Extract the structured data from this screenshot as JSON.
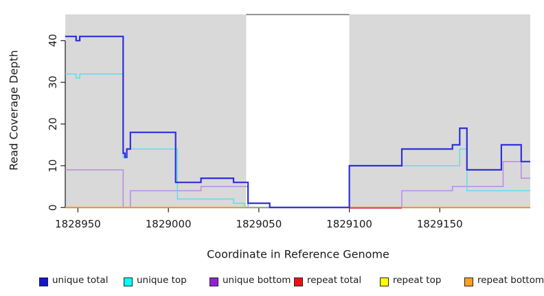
{
  "figure": {
    "xlabel": "Coordinate in Reference Genome",
    "ylabel": "Read Coverage Depth",
    "background_color": "#FFFFFF",
    "shaded_band_color": "#D9D9D9"
  },
  "chart_data": {
    "type": "line",
    "step": "post",
    "title": "",
    "xlabel": "Coordinate in Reference Genome",
    "ylabel": "Read Coverage Depth",
    "x_domain": [
      1828943,
      1829200
    ],
    "y_domain": [
      0,
      46.3
    ],
    "x_ticks": [
      1828950,
      1829000,
      1829050,
      1829100,
      1829150
    ],
    "y_ticks": [
      0,
      10,
      20,
      30,
      40
    ],
    "grid": false,
    "legend_position": "bottom",
    "shaded_regions": {
      "color": "#D9D9D9",
      "ranges": [
        [
          1828943,
          1829043
        ],
        [
          1829100,
          1829200
        ]
      ]
    },
    "gap_region": {
      "from": 1829043,
      "to": 1829100,
      "top_line_color": "#7A7A7A"
    },
    "series": [
      {
        "name": "unique total",
        "color": "#2D2DDE",
        "width": 2.2,
        "points": [
          [
            1828943,
            41
          ],
          [
            1828949,
            40
          ],
          [
            1828951,
            41
          ],
          [
            1828975,
            13
          ],
          [
            1828976,
            12
          ],
          [
            1828977,
            14
          ],
          [
            1828979,
            18
          ],
          [
            1829004,
            6
          ],
          [
            1829018,
            7
          ],
          [
            1829036,
            6
          ],
          [
            1829044,
            1
          ],
          [
            1829056,
            0
          ],
          [
            1829100,
            10
          ],
          [
            1829129,
            14
          ],
          [
            1829157,
            15
          ],
          [
            1829161,
            19
          ],
          [
            1829165,
            9
          ],
          [
            1829184,
            15
          ],
          [
            1829195,
            11
          ],
          [
            1829200,
            11
          ]
        ]
      },
      {
        "name": "unique top",
        "color": "#5CDEE9",
        "width": 1.5,
        "points": [
          [
            1828943,
            32
          ],
          [
            1828949,
            31
          ],
          [
            1828951,
            32
          ],
          [
            1828975,
            12
          ],
          [
            1828977,
            14
          ],
          [
            1829005,
            2
          ],
          [
            1829036,
            1
          ],
          [
            1829042,
            0
          ],
          [
            1829100,
            10
          ],
          [
            1829161,
            14
          ],
          [
            1829165,
            4
          ],
          [
            1829200,
            4
          ]
        ]
      },
      {
        "name": "unique bottom",
        "color": "#B78BE3",
        "width": 1.5,
        "points": [
          [
            1828943,
            9
          ],
          [
            1828975,
            0
          ],
          [
            1828979,
            4
          ],
          [
            1829018,
            5
          ],
          [
            1829044,
            0
          ],
          [
            1829129,
            4
          ],
          [
            1829157,
            5
          ],
          [
            1829185,
            11
          ],
          [
            1829195,
            7
          ],
          [
            1829200,
            7
          ]
        ]
      },
      {
        "name": "repeat total",
        "color": "#D2485E",
        "width": 2,
        "y_offset": 0.9,
        "points": [
          [
            1829100,
            0
          ],
          [
            1829129,
            0
          ]
        ]
      },
      {
        "name": "repeat top",
        "color": "#F2E43C",
        "width": 1.5,
        "points": [
          [
            1828943,
            0
          ],
          [
            1829200,
            0
          ]
        ]
      },
      {
        "name": "repeat bottom",
        "color": "#FF9D23",
        "width": 1.9,
        "points": [
          [
            1828943,
            0
          ],
          [
            1829200,
            0
          ]
        ]
      }
    ],
    "zero_line_overlays": [
      {
        "color": "#6FC49B",
        "from": 1829042,
        "to": 1829056,
        "after": "unique top",
        "width": 1.6
      }
    ],
    "draw_order": [
      "repeat top",
      "unique bottom",
      "repeat bottom",
      "unique top",
      "repeat total",
      "unique total"
    ]
  },
  "legend": {
    "items": [
      {
        "label": "unique total",
        "swatch": "#1414D2"
      },
      {
        "label": "unique top",
        "swatch": "#00FFFF"
      },
      {
        "label": "unique bottom",
        "swatch": "#9121D6"
      },
      {
        "label": "repeat total",
        "swatch": "#EE1111"
      },
      {
        "label": "repeat top",
        "swatch": "#FFFF00"
      },
      {
        "label": "repeat bottom",
        "swatch": "#FFA020"
      }
    ]
  }
}
